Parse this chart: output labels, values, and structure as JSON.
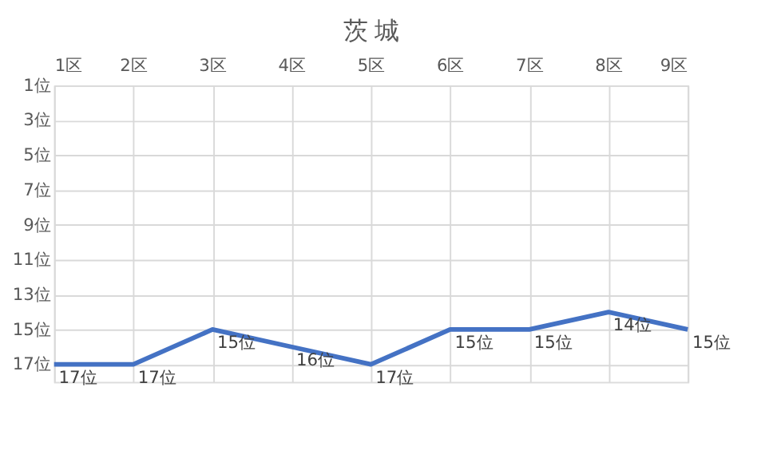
{
  "chart_data": {
    "type": "line",
    "title": "茨 城",
    "categories": [
      "1区",
      "2区",
      "3区",
      "4区",
      "5区",
      "6区",
      "7区",
      "8区",
      "9区"
    ],
    "series": [
      {
        "color": "#4472c4",
        "values": [
          17,
          17,
          15,
          16,
          17,
          15,
          15,
          14,
          15
        ],
        "value_labels": [
          "17位",
          "17位",
          "15位",
          "16位",
          "17位",
          "15位",
          "15位",
          "14位",
          "15位"
        ]
      }
    ],
    "ylim": [
      18,
      1
    ],
    "yticks": [
      {
        "value": 1,
        "label": "1位"
      },
      {
        "value": 3,
        "label": "3位"
      },
      {
        "value": 5,
        "label": "5位"
      },
      {
        "value": 7,
        "label": "7位"
      },
      {
        "value": 9,
        "label": "9位"
      },
      {
        "value": 11,
        "label": "11位"
      },
      {
        "value": 13,
        "label": "13位"
      },
      {
        "value": 15,
        "label": "15位"
      },
      {
        "value": 17,
        "label": "17位"
      }
    ],
    "grid": true,
    "legend": false,
    "marker": "none",
    "line_style": "solid"
  }
}
